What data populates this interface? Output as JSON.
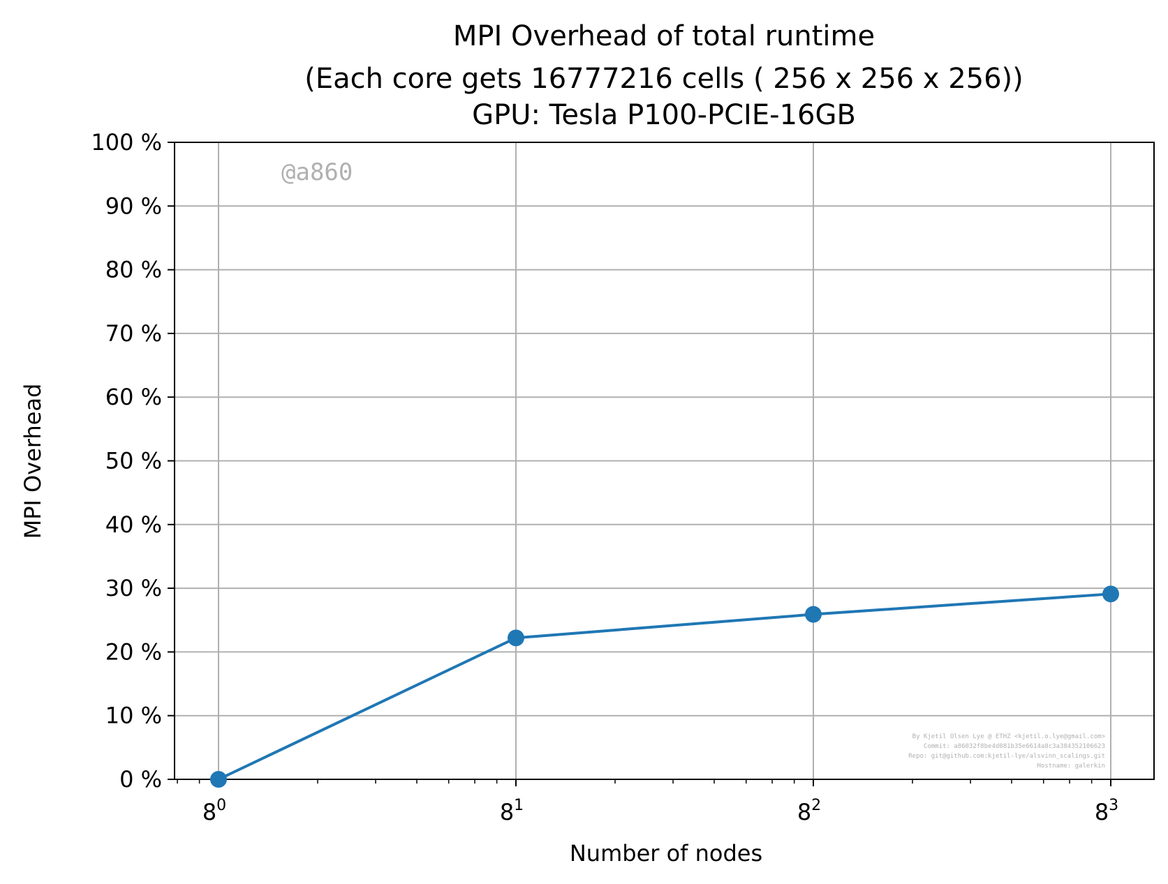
{
  "chart_data": {
    "type": "line",
    "title_lines": [
      "MPI Overhead of total runtime",
      "(Each core gets 16777216 cells ( 256 x 256 x 256))",
      "GPU: Tesla P100-PCIE-16GB"
    ],
    "xlabel": "Number of nodes",
    "ylabel": "MPI Overhead",
    "x_scale": "log",
    "x_scale_base": 8,
    "x_ticks": [
      {
        "value": 1,
        "base": "8",
        "exponent": "0"
      },
      {
        "value": 8,
        "base": "8",
        "exponent": "1"
      },
      {
        "value": 64,
        "base": "8",
        "exponent": "2"
      },
      {
        "value": 512,
        "base": "8",
        "exponent": "3"
      }
    ],
    "y_ticks": [
      "0 %",
      "10 %",
      "20 %",
      "30 %",
      "40 %",
      "50 %",
      "60 %",
      "70 %",
      "80 %",
      "90 %",
      "100 %"
    ],
    "y_tick_values": [
      0,
      10,
      20,
      30,
      40,
      50,
      60,
      70,
      80,
      90,
      100
    ],
    "ylim": [
      0,
      100
    ],
    "grid": true,
    "series": [
      {
        "x": [
          1,
          8,
          64,
          512
        ],
        "y": [
          0,
          22.2,
          25.9,
          29.1
        ],
        "color": "#1f77b4"
      }
    ],
    "watermark": "@a860",
    "watermark_color": "#b0b0b0",
    "footer_lines": [
      "By Kjetil Olsen Lye @ ETHZ <kjetil.o.lye@gmail.com>",
      "Commit: a86032f8be4d081b35e6614a8c3a384352106623",
      "Repo: git@github.com:kjetil-lye/alsvinn_scalings.git",
      "Hostname: galerkin"
    ],
    "footer_color": "#b0b0b0",
    "grid_color": "#b0b0b0"
  }
}
